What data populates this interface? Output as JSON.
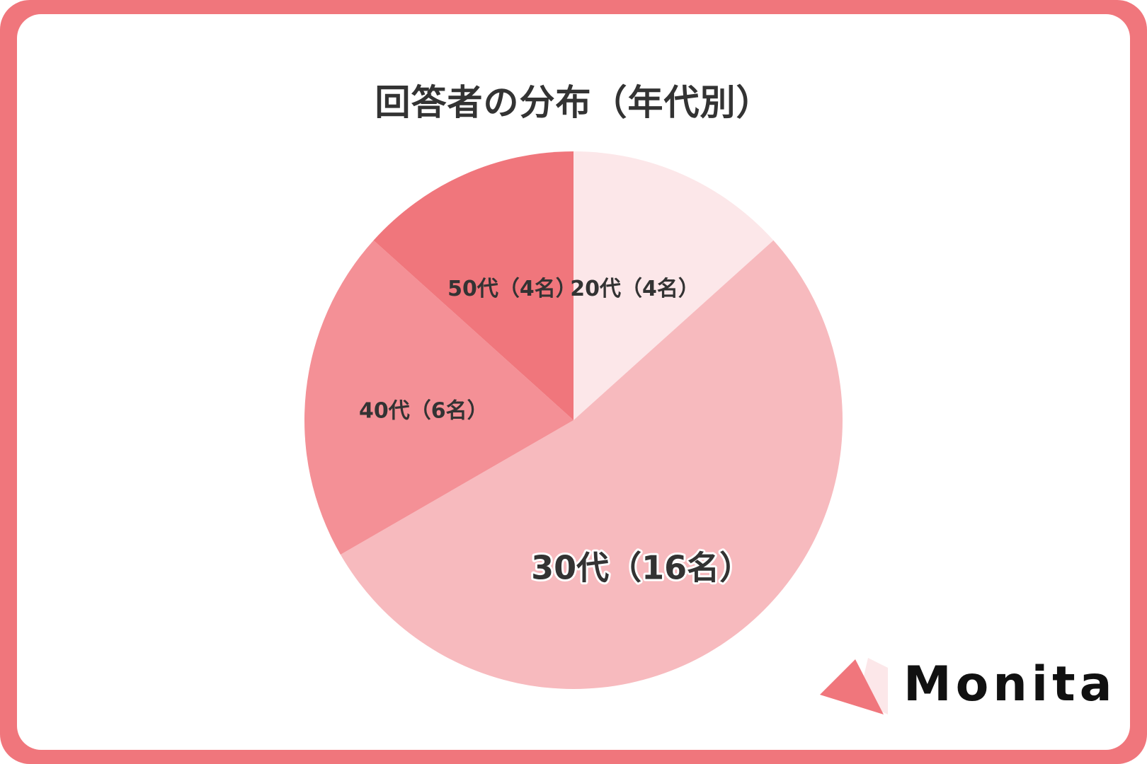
{
  "chart_data": {
    "type": "pie",
    "title": "回答者の分布（年代別）",
    "start_angle_deg": 0,
    "direction": "clockwise",
    "slices": [
      {
        "label": "20代（4名）",
        "value": 4,
        "color": "#fce7e9",
        "text_color": "#333333",
        "emphasis": false
      },
      {
        "label": "30代（16名）",
        "value": 16,
        "color": "#f7babe",
        "text_color": "#333333",
        "emphasis": true
      },
      {
        "label": "40代（6名）",
        "value": 6,
        "color": "#f49096",
        "text_color": "#333333",
        "emphasis": false
      },
      {
        "label": "50代（4名）",
        "value": 4,
        "color": "#f0767c",
        "text_color": "#333333",
        "emphasis": false
      }
    ]
  },
  "colors": {
    "frame": "#f0767c",
    "background": "#ffffff",
    "title": "#333333"
  },
  "logo": {
    "text": "Monita",
    "mark_icon": "triangle-logo-icon",
    "mark_colors": [
      "#f0767c",
      "#fce7e9"
    ]
  }
}
